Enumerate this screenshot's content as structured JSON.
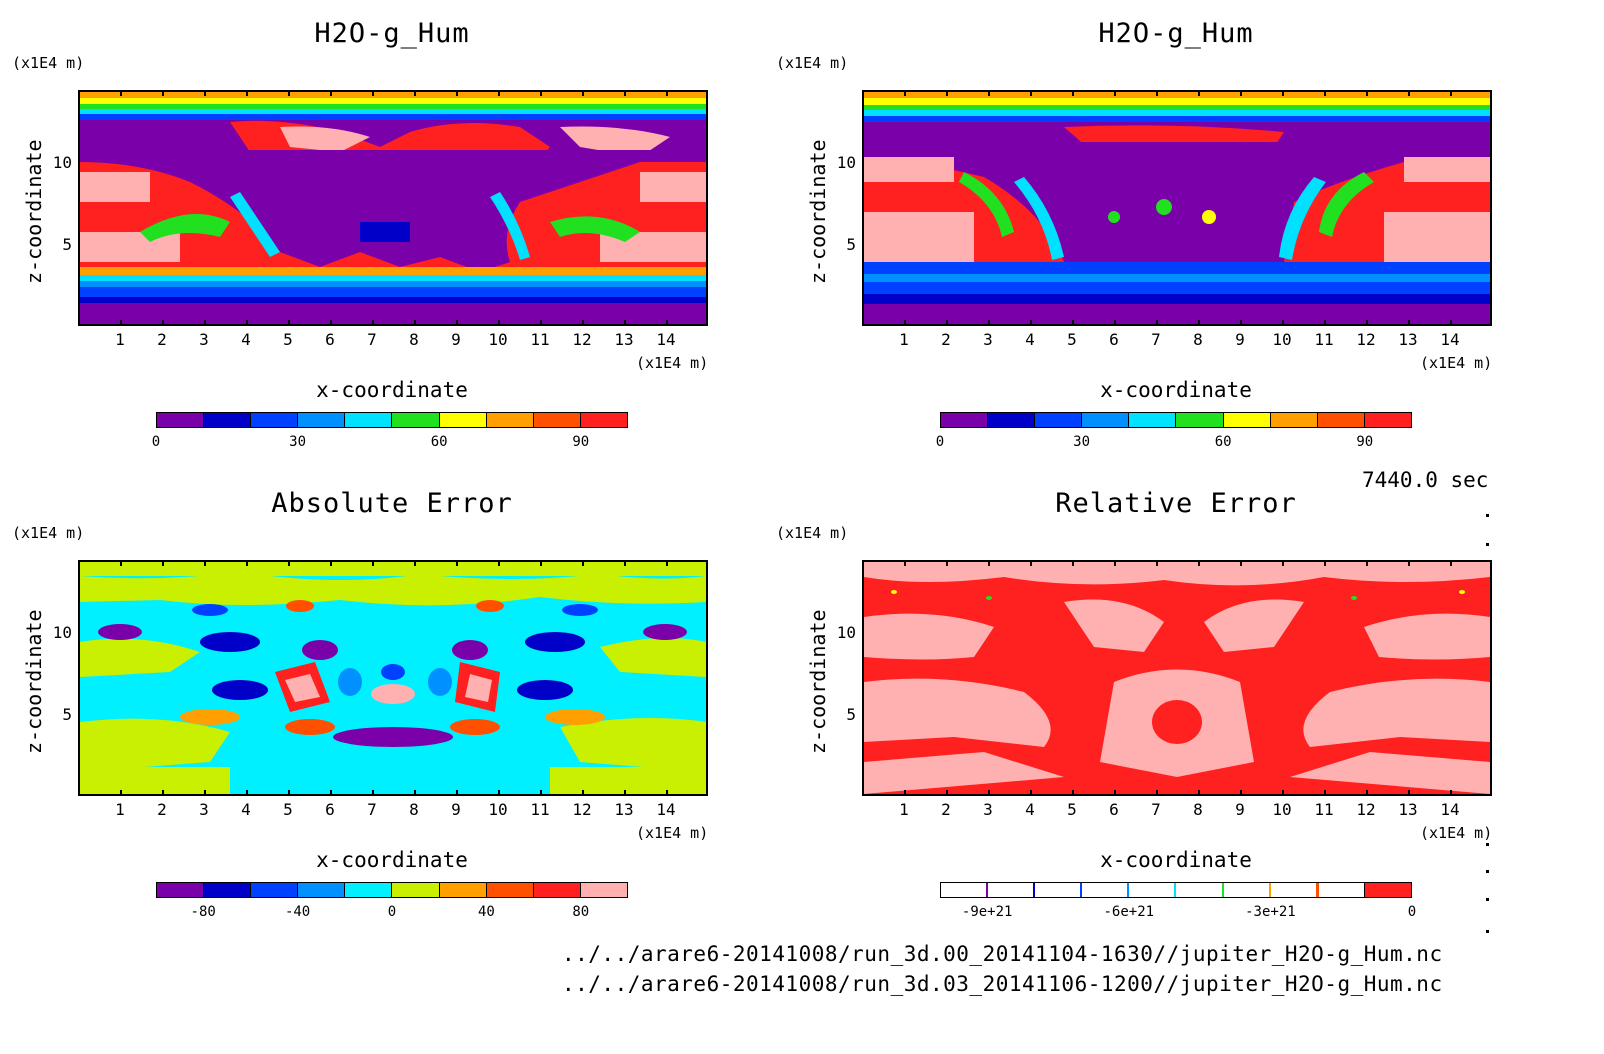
{
  "panels": [
    {
      "title": "H2O-g_Hum",
      "z_unit": "(x1E4 m)",
      "x_unit": "(x1E4 m)",
      "xlabel": "x-coordinate",
      "ylabel": "z-coordinate",
      "x_ticks": [
        "1",
        "2",
        "3",
        "4",
        "5",
        "6",
        "7",
        "8",
        "9",
        "10",
        "11",
        "12",
        "13",
        "14"
      ],
      "y_ticks": [
        "10",
        "5"
      ],
      "colorbar": {
        "colors": [
          "#7a00aa",
          "#0000c8",
          "#0040ff",
          "#0090ff",
          "#00e0ff",
          "#20e020",
          "#ffff00",
          "#ffa000",
          "#ff5000",
          "#ff2020"
        ],
        "labels": [
          "0",
          "30",
          "60",
          "90"
        ]
      }
    },
    {
      "title": "H2O-g_Hum",
      "z_unit": "(x1E4 m)",
      "x_unit": "(x1E4 m)",
      "xlabel": "x-coordinate",
      "ylabel": "z-coordinate",
      "x_ticks": [
        "1",
        "2",
        "3",
        "4",
        "5",
        "6",
        "7",
        "8",
        "9",
        "10",
        "11",
        "12",
        "13",
        "14"
      ],
      "y_ticks": [
        "10",
        "5"
      ],
      "colorbar": {
        "colors": [
          "#7a00aa",
          "#0000c8",
          "#0040ff",
          "#0090ff",
          "#00e0ff",
          "#20e020",
          "#ffff00",
          "#ffa000",
          "#ff5000",
          "#ff2020"
        ],
        "labels": [
          "0",
          "30",
          "60",
          "90"
        ]
      }
    },
    {
      "title": "Absolute Error",
      "z_unit": "(x1E4 m)",
      "x_unit": "(x1E4 m)",
      "xlabel": "x-coordinate",
      "ylabel": "z-coordinate",
      "x_ticks": [
        "1",
        "2",
        "3",
        "4",
        "5",
        "6",
        "7",
        "8",
        "9",
        "10",
        "11",
        "12",
        "13",
        "14"
      ],
      "y_ticks": [
        "10",
        "5"
      ],
      "colorbar": {
        "colors": [
          "#7a00aa",
          "#0000c8",
          "#0040ff",
          "#0090ff",
          "#00f0ff",
          "#c8f000",
          "#ffa000",
          "#ff5000",
          "#ff2020",
          "#ffb0b0"
        ],
        "labels": [
          "-80",
          "-40",
          "0",
          "40",
          "80"
        ]
      }
    },
    {
      "title": "Relative Error",
      "z_unit": "(x1E4 m)",
      "x_unit": "(x1E4 m)",
      "xlabel": "x-coordinate",
      "ylabel": "z-coordinate",
      "x_ticks": [
        "1",
        "2",
        "3",
        "4",
        "5",
        "6",
        "7",
        "8",
        "9",
        "10",
        "11",
        "12",
        "13",
        "14"
      ],
      "y_ticks": [
        "10",
        "5"
      ],
      "colorbar": {
        "colors": [
          "#ffffff",
          "#ffffff",
          "#ffffff",
          "#ffffff",
          "#ffffff",
          "#ffffff",
          "#ffffff",
          "#ffffff",
          "#ffffff",
          "#ff2020"
        ],
        "marks": [
          "#7a00aa",
          "#0000c8",
          "#0040ff",
          "#0090ff",
          "#00e0ff",
          "#20e020",
          "#ffa000",
          "#ff5000"
        ],
        "labels": [
          "-9e+21",
          "-6e+21",
          "-3e+21",
          "0"
        ]
      }
    }
  ],
  "timestamp": "7440.0 sec",
  "file_paths": [
    "../../arare6-20141008/run_3d.00_20141104-1630//jupiter_H2O-g_Hum.nc",
    "../../arare6-20141008/run_3d.03_20141106-1200//jupiter_H2O-g_Hum.nc"
  ],
  "chart_data": [
    {
      "type": "heatmap",
      "title": "H2O-g_Hum",
      "xlabel": "x-coordinate",
      "ylabel": "z-coordinate",
      "x_unit": "(x1E4 m)",
      "z_unit": "(x1E4 m)",
      "xlim": [
        0,
        15
      ],
      "ylim": [
        0,
        14.5
      ],
      "colorbar_range": [
        0,
        100
      ],
      "colorbar_labels": [
        0,
        30,
        60,
        90
      ]
    },
    {
      "type": "heatmap",
      "title": "H2O-g_Hum",
      "xlabel": "x-coordinate",
      "ylabel": "z-coordinate",
      "x_unit": "(x1E4 m)",
      "z_unit": "(x1E4 m)",
      "xlim": [
        0,
        15
      ],
      "ylim": [
        0,
        14.5
      ],
      "colorbar_range": [
        0,
        100
      ],
      "colorbar_labels": [
        0,
        30,
        60,
        90
      ]
    },
    {
      "type": "heatmap",
      "title": "Absolute Error",
      "xlabel": "x-coordinate",
      "ylabel": "z-coordinate",
      "x_unit": "(x1E4 m)",
      "z_unit": "(x1E4 m)",
      "xlim": [
        0,
        15
      ],
      "ylim": [
        0,
        14.5
      ],
      "colorbar_range": [
        -100,
        100
      ],
      "colorbar_labels": [
        -80,
        -40,
        0,
        40,
        80
      ]
    },
    {
      "type": "heatmap",
      "title": "Relative Error",
      "xlabel": "x-coordinate",
      "ylabel": "z-coordinate",
      "x_unit": "(x1E4 m)",
      "z_unit": "(x1E4 m)",
      "xlim": [
        0,
        15
      ],
      "ylim": [
        0,
        14.5
      ],
      "colorbar_range": [
        -1e+22,
        0
      ],
      "colorbar_labels": [
        "-9e+21",
        "-6e+21",
        "-3e+21",
        "0"
      ]
    }
  ]
}
